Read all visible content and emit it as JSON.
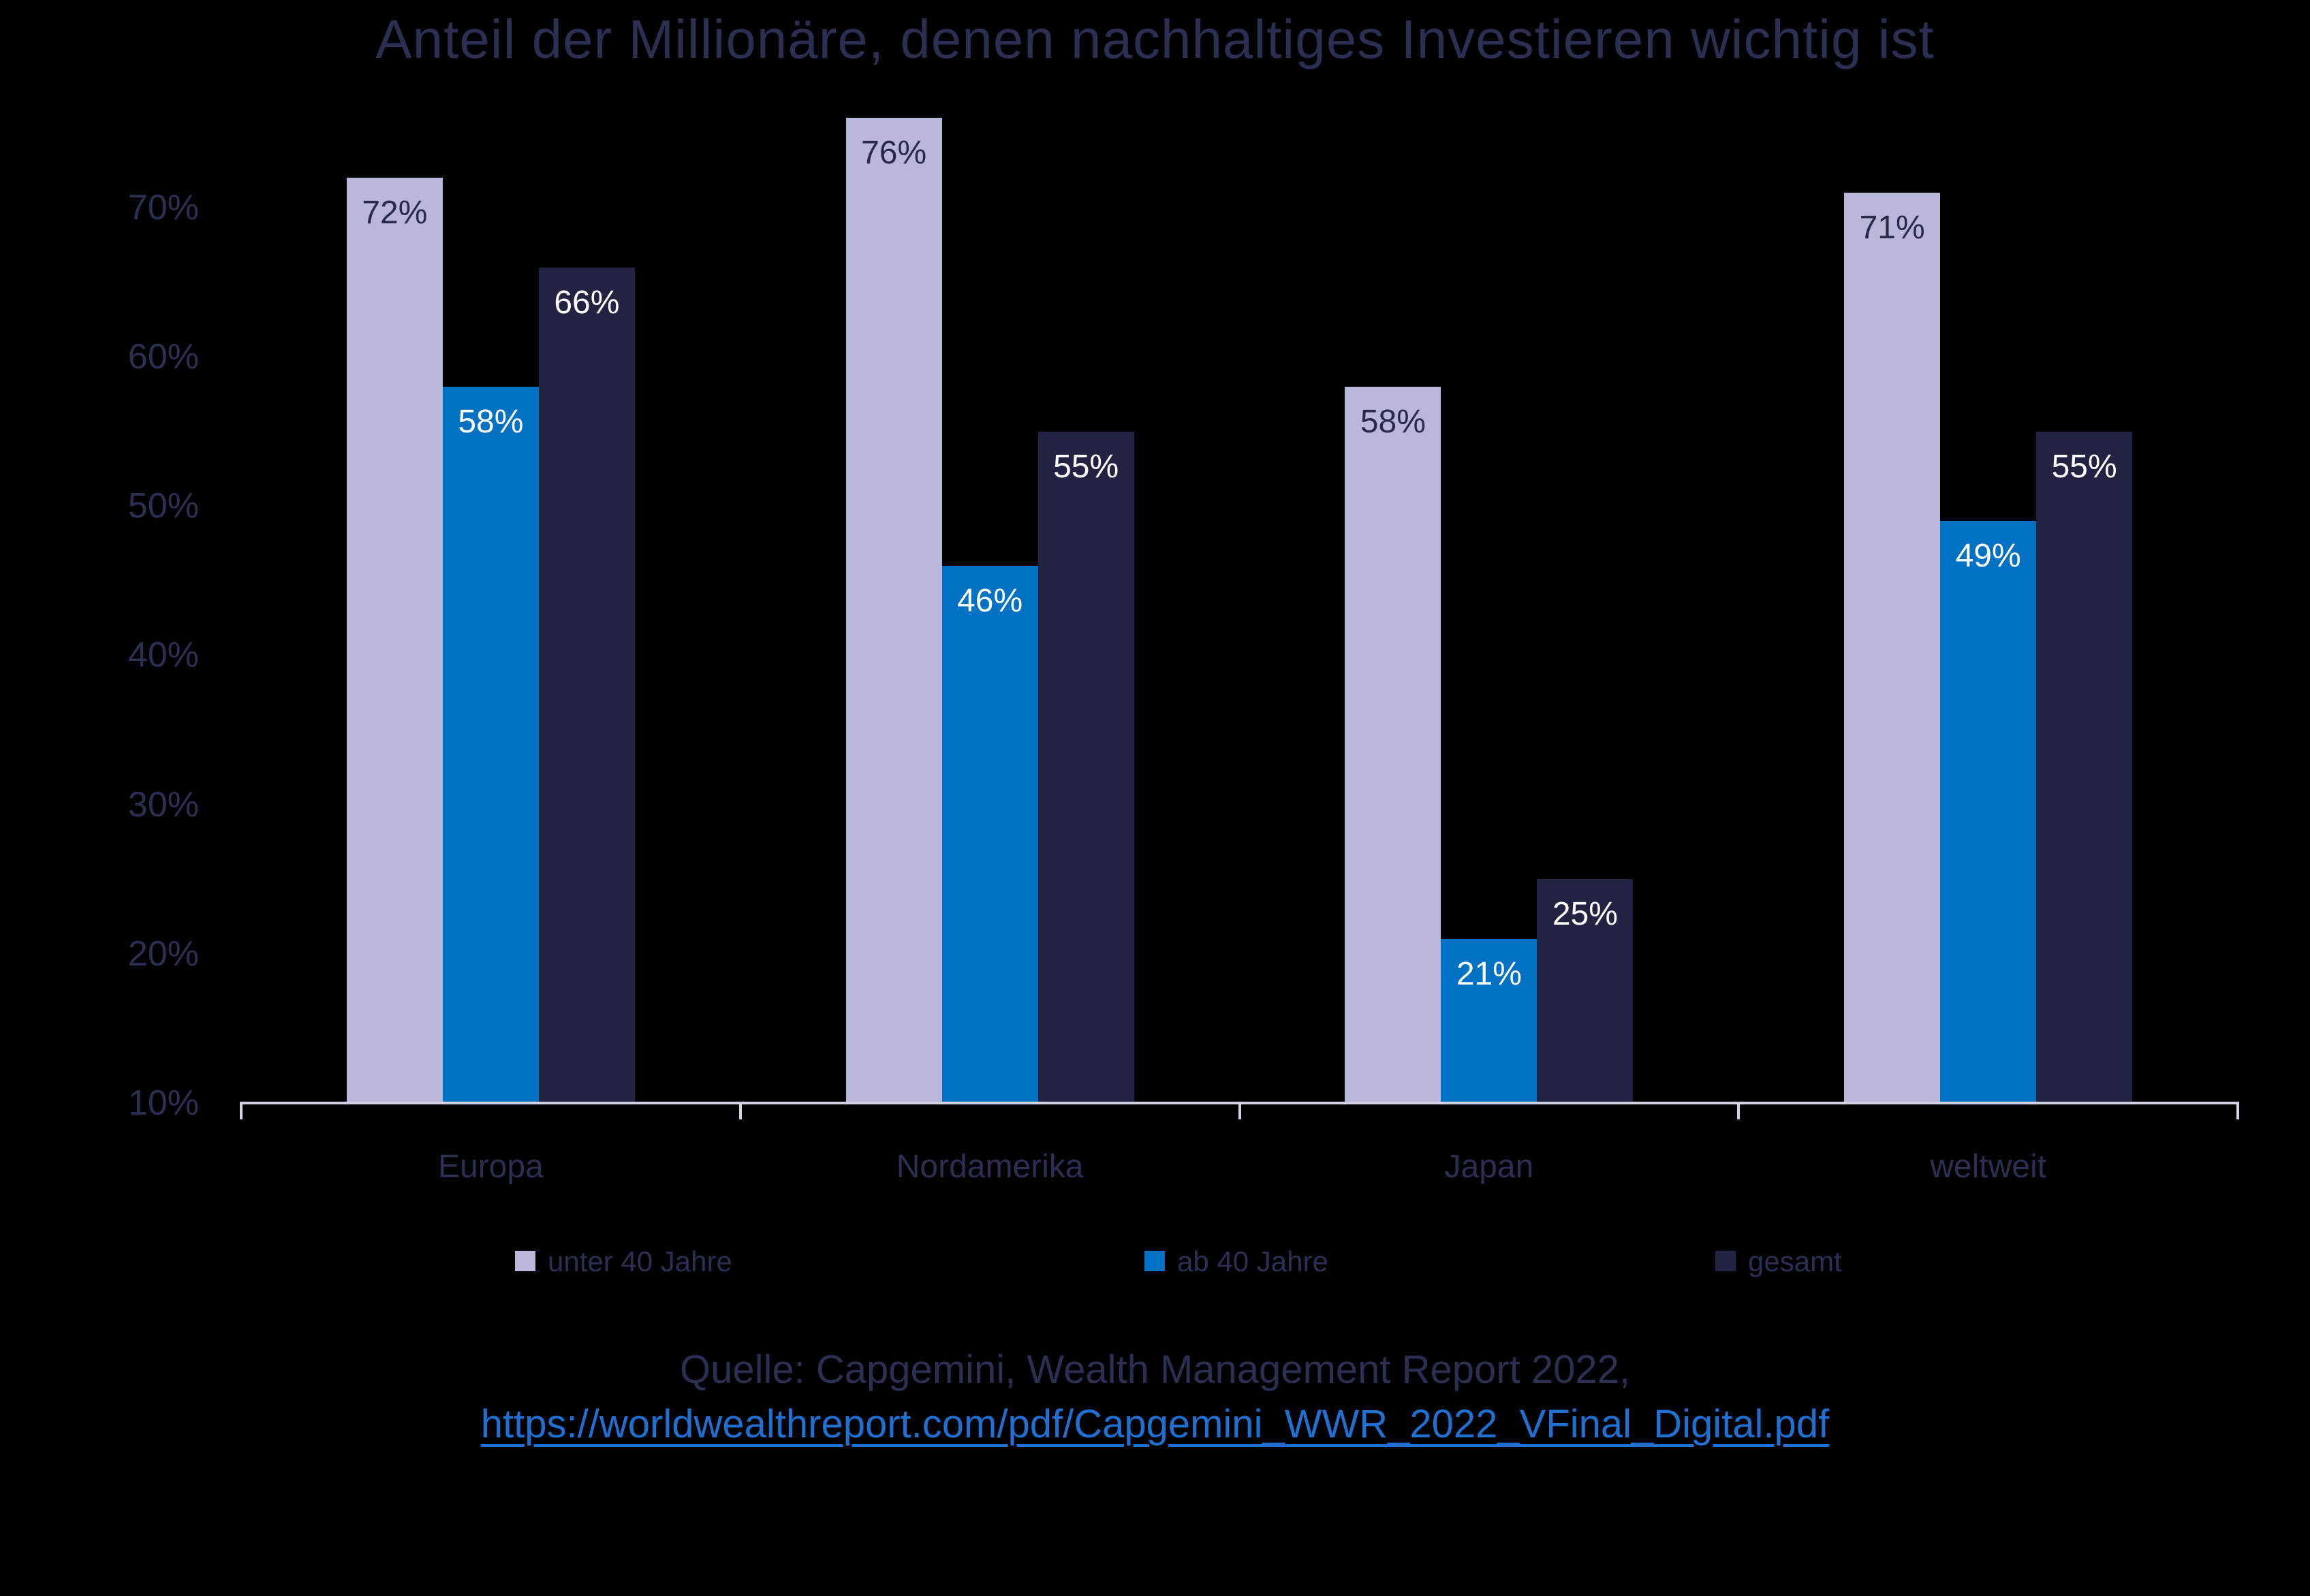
{
  "title": "Anteil der Millionäre, denen nachhaltiges Investieren wichtig ist",
  "colors": {
    "background": "#000000",
    "title_text": "#2C2E52",
    "axis_line": "#D2D2E4",
    "link": "#1F70D2",
    "series_unter_40": "#B9B8DB",
    "series_ab_40": "#0171C3",
    "series_gesamt": "#222342",
    "label_on_light": "#282A48",
    "label_on_dark": "#FFFFFF"
  },
  "chart_data": {
    "type": "bar",
    "title": "Anteil der Millionäre, denen nachhaltiges Investieren wichtig ist",
    "categories": [
      "Europa",
      "Nordamerika",
      "Japan",
      "weltweit"
    ],
    "series": [
      {
        "name": "unter 40 Jahre",
        "values": [
          72,
          76,
          58,
          71
        ],
        "color": "#B9B8DB",
        "label_color": "#282A48"
      },
      {
        "name": "ab 40 Jahre",
        "values": [
          58,
          46,
          21,
          49
        ],
        "color": "#0171C3",
        "label_color": "#FFFFFF"
      },
      {
        "name": "gesamt",
        "values": [
          66,
          55,
          25,
          55
        ],
        "color": "#222342",
        "label_color": "#FFFFFF"
      }
    ],
    "value_suffix": "%",
    "data_labels": "inside-end",
    "xlabel": "",
    "ylabel": "",
    "y_axis": {
      "min": 10,
      "max": 70,
      "step": 10,
      "tick_suffix": "%"
    },
    "grid": false,
    "legend_position": "bottom"
  },
  "source": {
    "line1": "Quelle: Capgemini, Wealth Management Report 2022,",
    "link": "https://worldwealthreport.com/pdf/Capgemini_WWR_2022_VFinal_Digital.pdf"
  }
}
